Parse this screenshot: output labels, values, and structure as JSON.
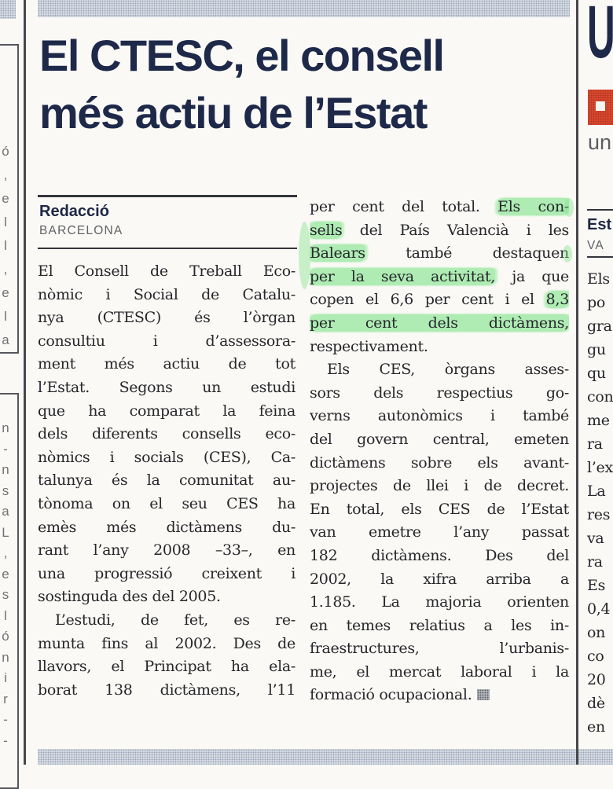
{
  "headline": {
    "line1": "El CTESC, el consell",
    "line2": "més actiu de l’Estat"
  },
  "byline": {
    "author": "Redacció",
    "location": "BARCELONA"
  },
  "article": {
    "columns": [
      {
        "lines": [
          {
            "t": "El Consell de Treball Eco-"
          },
          {
            "t": "nòmic i Social de Catalu-"
          },
          {
            "t": "nya (CTESC) és l’òrgan"
          },
          {
            "t": "consultiu i d’assessora-"
          },
          {
            "t": "ment més actiu de tot"
          },
          {
            "t": "l’Estat. Segons un estudi"
          },
          {
            "t": "que ha comparat la feina"
          },
          {
            "t": "dels diferents consells eco-"
          },
          {
            "t": "nòmics i socials (CES), Ca-"
          },
          {
            "t": "talunya és la comunitat au-"
          },
          {
            "t": "tònoma on el seu CES ha"
          },
          {
            "t": "emès més dictàmens du-"
          },
          {
            "t": "rant l’any 2008 –33–, en"
          },
          {
            "t": "una progressió creixent i"
          },
          {
            "t": "sostinguda des del 2005.",
            "just": false
          },
          {
            "t": "L’estudi, de fet, es re-",
            "indent": true
          },
          {
            "t": "munta fins al 2002. Des de"
          },
          {
            "t": "llavors, el Principat ha ela-"
          },
          {
            "t": "borat 138 dictàmens, l’11"
          }
        ]
      },
      {
        "lines": [
          {
            "seg": [
              {
                "t": "per cent del total. "
              },
              {
                "t": "Els con-",
                "h": true
              }
            ]
          },
          {
            "seg": [
              {
                "t": "sells",
                "h": true
              },
              {
                "t": " del País Valencià i les"
              }
            ]
          },
          {
            "seg": [
              {
                "t": "Balears",
                "h": true
              },
              {
                "t": " també destaquen"
              }
            ]
          },
          {
            "seg": [
              {
                "t": "per la seva activitat,",
                "h": true
              },
              {
                "t": " ja que"
              }
            ]
          },
          {
            "seg": [
              {
                "t": "copen el 6,6 per cent i el "
              },
              {
                "t": "8,3",
                "h": true
              }
            ]
          },
          {
            "seg": [
              {
                "t": "per cent dels dictàmens,",
                "h": true
              }
            ]
          },
          {
            "t": "respectivament.",
            "just": false
          },
          {
            "t": "Els CES, òrgans asses-",
            "indent": true
          },
          {
            "t": "sors dels respectius go-"
          },
          {
            "t": "verns autonòmics i també"
          },
          {
            "t": "del govern central, emeten"
          },
          {
            "t": "dictàmens sobre els avant-"
          },
          {
            "t": "projectes de llei i de decret."
          },
          {
            "t": "En total, els CES de l’Estat"
          },
          {
            "t": "van emetre l’any passat"
          },
          {
            "t": "182 dictàmens. Des del"
          },
          {
            "t": "2002, la xifra arriba a"
          },
          {
            "t": "1.185. La majoria orienten"
          },
          {
            "t": "en temes relatius a les in-"
          },
          {
            "t": "fraestructures, l’urbanis-"
          },
          {
            "t": "me, el mercat laboral i la"
          },
          {
            "t": "formació ocupacional.",
            "just": false,
            "endmark": true
          }
        ]
      }
    ]
  },
  "left_edge": {
    "box1_letters": [
      "ó",
      ",",
      "e",
      "l",
      "l",
      ",",
      "e",
      "l",
      "a"
    ],
    "box2_letters": [
      "n",
      "-",
      "n",
      "s",
      "a",
      "L",
      ",",
      "e",
      "s",
      "l",
      "ó",
      "n",
      "i",
      "r",
      "-",
      "-"
    ]
  },
  "right_edge": {
    "headline_fragment": "U",
    "kicker_fragment": "un",
    "byline_author_fragment": "Est",
    "byline_location_fragment": "VA",
    "body_lines": [
      "Els",
      "po",
      "gra",
      "gu",
      "qu",
      "con",
      "me",
      "ra",
      "l’ex",
      "La",
      "res",
      "va",
      "ra",
      "Es",
      "0,4",
      "on",
      "co",
      "20",
      "dè",
      "en"
    ]
  },
  "colors": {
    "headline_navy": "#1e294a",
    "body_ink": "#26262b",
    "highlighter_green": "#80e38a",
    "bullet_red": "#dc4a31",
    "halftone_blue_gray": "#94a0b3",
    "paper": "#faf9f5"
  }
}
